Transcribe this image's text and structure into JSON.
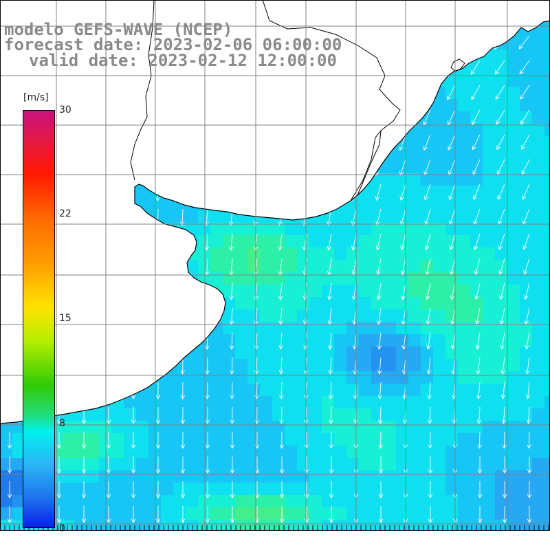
{
  "header": {
    "model": "modelo GEFS-WAVE (NCEP)",
    "forecast": "forecast date: 2023-02-06 06:00:00",
    "valid": "valid date: 2023-02-12 12:00:00"
  },
  "colorbar": {
    "unit": "[m/s]",
    "ticks": [
      "30",
      "22",
      "15",
      "8",
      "0"
    ],
    "range": [
      0,
      30
    ],
    "colors": [
      "#0a1fe8",
      "#1e73ee",
      "#2bb4f5",
      "#00f2ee",
      "#22dd7a",
      "#2ecb06",
      "#b8ee00",
      "#ffe100",
      "#ff9f00",
      "#ff6a00",
      "#ff1a00",
      "#e0174f",
      "#c8127e"
    ]
  },
  "map": {
    "variable": "wind speed and direction",
    "land_color": "#ffffff",
    "grid_color": "#808080",
    "arrow_color": "#ffffff",
    "ocean_palette": [
      "#1e7de8",
      "#2492f0",
      "#27a8f3",
      "#17c6f4",
      "#0fe0f0",
      "#18f0d6",
      "#2cf0a8",
      "#44ee8a"
    ],
    "prevailing_wind": "from north-northeast"
  }
}
